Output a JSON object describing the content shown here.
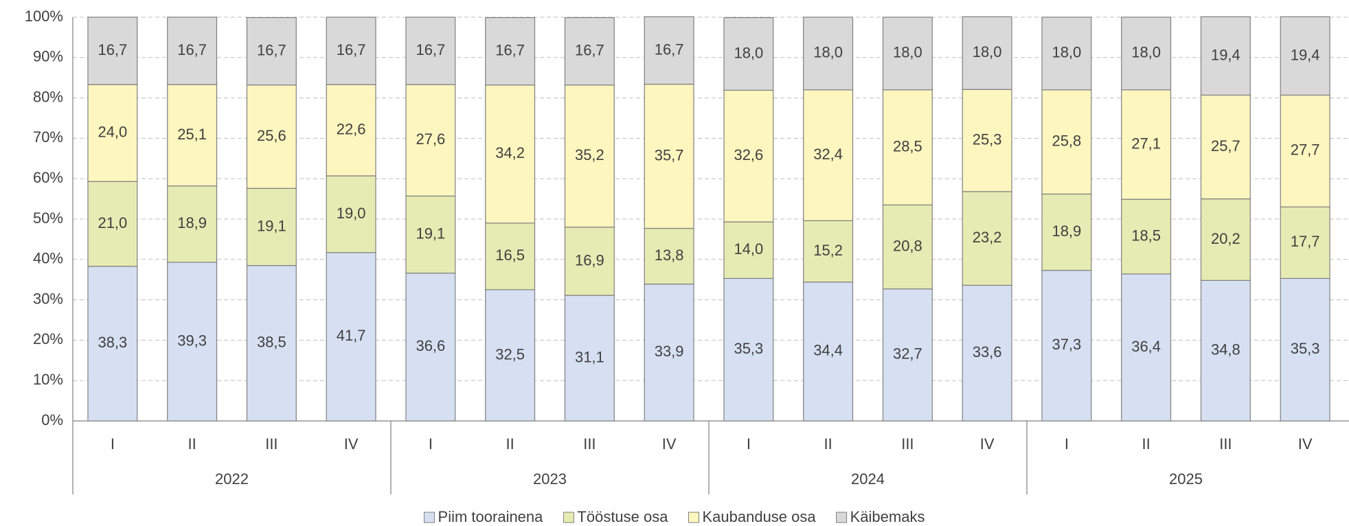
{
  "chart_data": {
    "type": "stacked_bar_percent",
    "categories": [
      "I",
      "II",
      "III",
      "IV",
      "I",
      "II",
      "III",
      "IV",
      "I",
      "II",
      "III",
      "IV",
      "I",
      "II",
      "III",
      "IV"
    ],
    "groups": [
      "2022",
      "2023",
      "2024",
      "2025"
    ],
    "ylim": [
      0,
      100
    ],
    "yticks": [
      {
        "value": 0,
        "label": "0%"
      },
      {
        "value": 10,
        "label": "10%"
      },
      {
        "value": 20,
        "label": "20%"
      },
      {
        "value": 30,
        "label": "30%"
      },
      {
        "value": 40,
        "label": "40%"
      },
      {
        "value": 50,
        "label": "50%"
      },
      {
        "value": 60,
        "label": "60%"
      },
      {
        "value": 70,
        "label": "70%"
      },
      {
        "value": 80,
        "label": "80%"
      },
      {
        "value": 90,
        "label": "90%"
      },
      {
        "value": 100,
        "label": "100%"
      }
    ],
    "grid": true,
    "legend": "bottom",
    "series": [
      {
        "name": "Piim toorainena",
        "color": "#d6e0f2",
        "values": [
          38.3,
          39.3,
          38.5,
          41.7,
          36.6,
          32.5,
          31.1,
          33.9,
          35.3,
          34.4,
          32.7,
          33.6,
          37.3,
          36.4,
          34.8,
          35.3
        ],
        "value_labels": [
          "38,3",
          "39,3",
          "38,5",
          "41,7",
          "36,6",
          "32,5",
          "31,1",
          "33,9",
          "35,3",
          "34,4",
          "32,7",
          "33,6",
          "37,3",
          "36,4",
          "34,8",
          "35,3"
        ]
      },
      {
        "name": "Tööstuse osa",
        "color": "#e6ebb3",
        "values": [
          21.0,
          18.9,
          19.1,
          19.0,
          19.1,
          16.5,
          16.9,
          13.8,
          14.0,
          15.2,
          20.8,
          23.2,
          18.9,
          18.5,
          20.2,
          17.7
        ],
        "value_labels": [
          "21,0",
          "18,9",
          "19,1",
          "19,0",
          "19,1",
          "16,5",
          "16,9",
          "13,8",
          "14,0",
          "15,2",
          "20,8",
          "23,2",
          "18,9",
          "18,5",
          "20,2",
          "17,7"
        ]
      },
      {
        "name": "Kaubanduse osa",
        "color": "#fdf6bf",
        "values": [
          24.0,
          25.1,
          25.6,
          22.6,
          27.6,
          34.2,
          35.2,
          35.7,
          32.6,
          32.4,
          28.5,
          25.3,
          25.8,
          27.1,
          25.7,
          27.7
        ],
        "value_labels": [
          "24,0",
          "25,1",
          "25,6",
          "22,6",
          "27,6",
          "34,2",
          "35,2",
          "35,7",
          "32,6",
          "32,4",
          "28,5",
          "25,3",
          "25,8",
          "27,1",
          "25,7",
          "27,7"
        ]
      },
      {
        "name": "Käibemaks",
        "color": "#d9d9d9",
        "values": [
          16.7,
          16.7,
          16.7,
          16.7,
          16.7,
          16.7,
          16.7,
          16.7,
          18.0,
          18.0,
          18.0,
          18.0,
          18.0,
          18.0,
          19.4,
          19.4
        ],
        "value_labels": [
          "16,7",
          "16,7",
          "16,7",
          "16,7",
          "16,7",
          "16,7",
          "16,7",
          "16,7",
          "18,0",
          "18,0",
          "18,0",
          "18,0",
          "18,0",
          "18,0",
          "19,4",
          "19,4"
        ]
      }
    ]
  }
}
